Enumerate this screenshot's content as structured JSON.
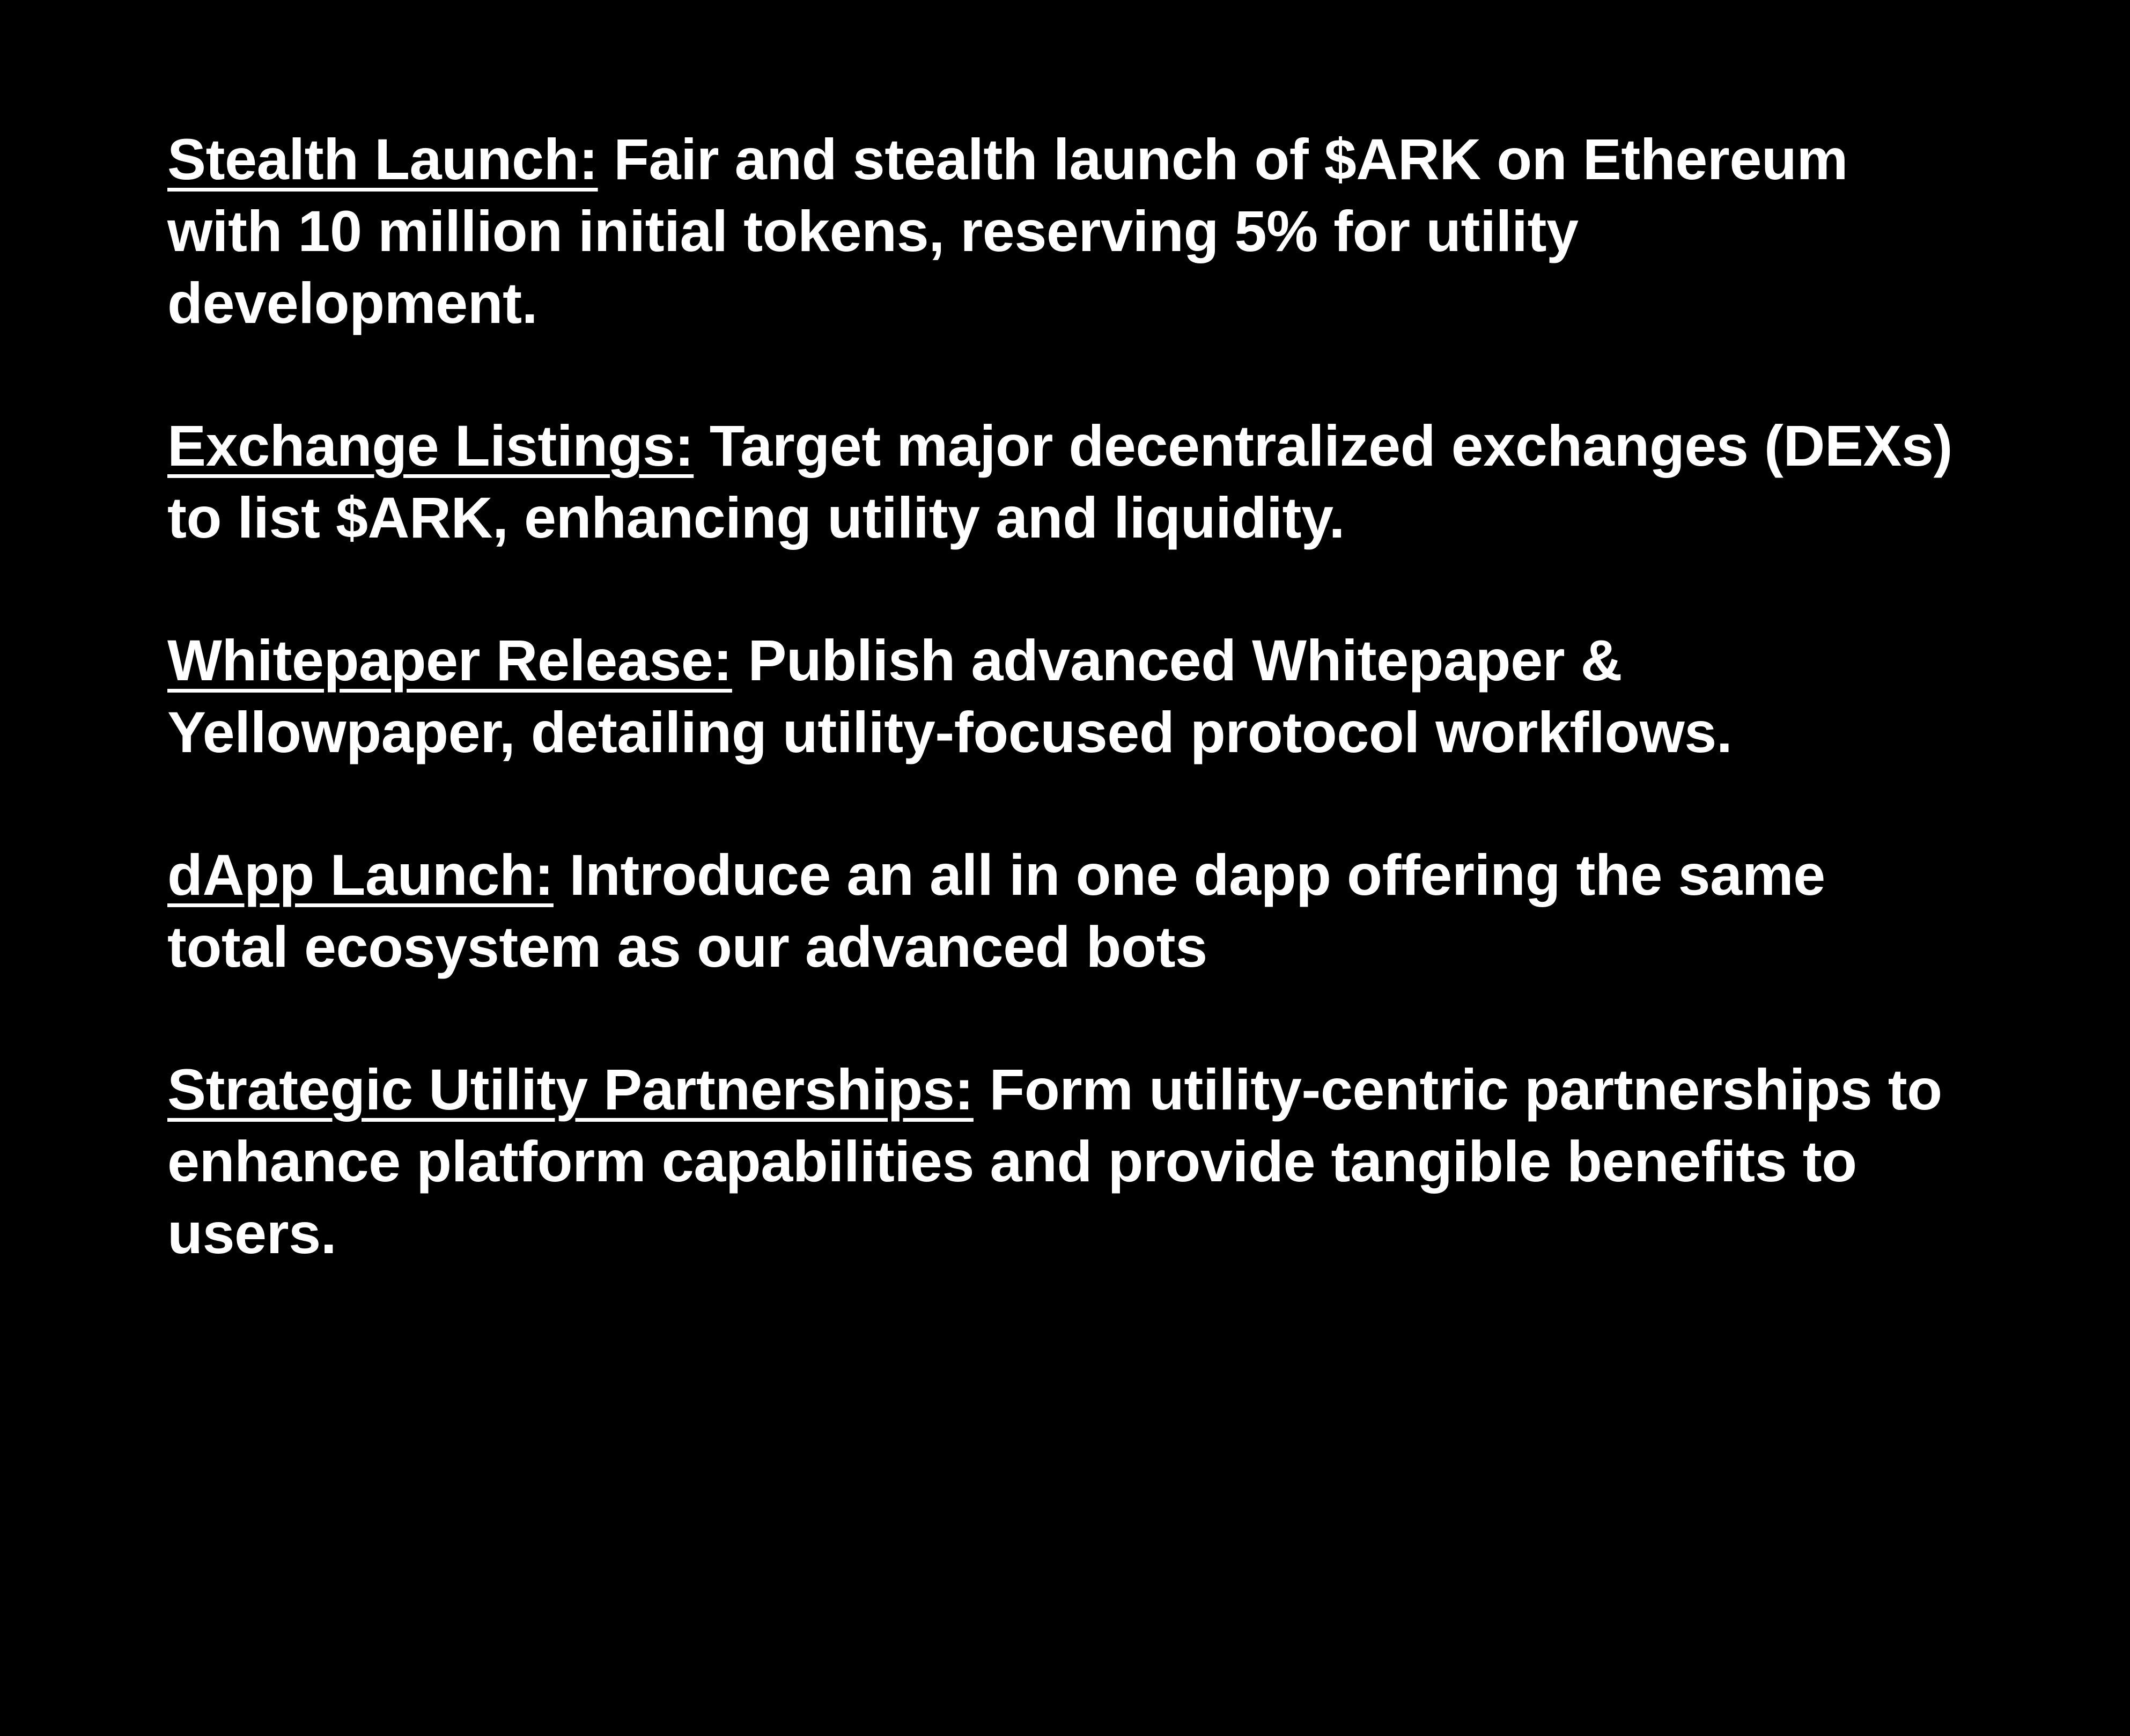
{
  "items": [
    {
      "title": "Stealth Launch:",
      "text": " Fair and stealth launch of $ARK on Ethereum with 10 million initial tokens, reserving 5% for utility development."
    },
    {
      "title": "Exchange Listings:",
      "text": " Target major decentralized exchanges (DEXs) to list $ARK, enhancing utility and liquidity."
    },
    {
      "title": "Whitepaper Release:",
      "text": " Publish advanced Whitepaper & Yellowpaper, detailing utility-focused protocol workflows."
    },
    {
      "title": "dApp Launch:",
      "text": " Introduce an all in one dapp offering the same total ecosystem as our advanced bots"
    },
    {
      "title": "Strategic Utility Partnerships:",
      "text": " Form utility-centric partnerships to enhance platform capabilities and provide tangible benefits to users."
    }
  ]
}
